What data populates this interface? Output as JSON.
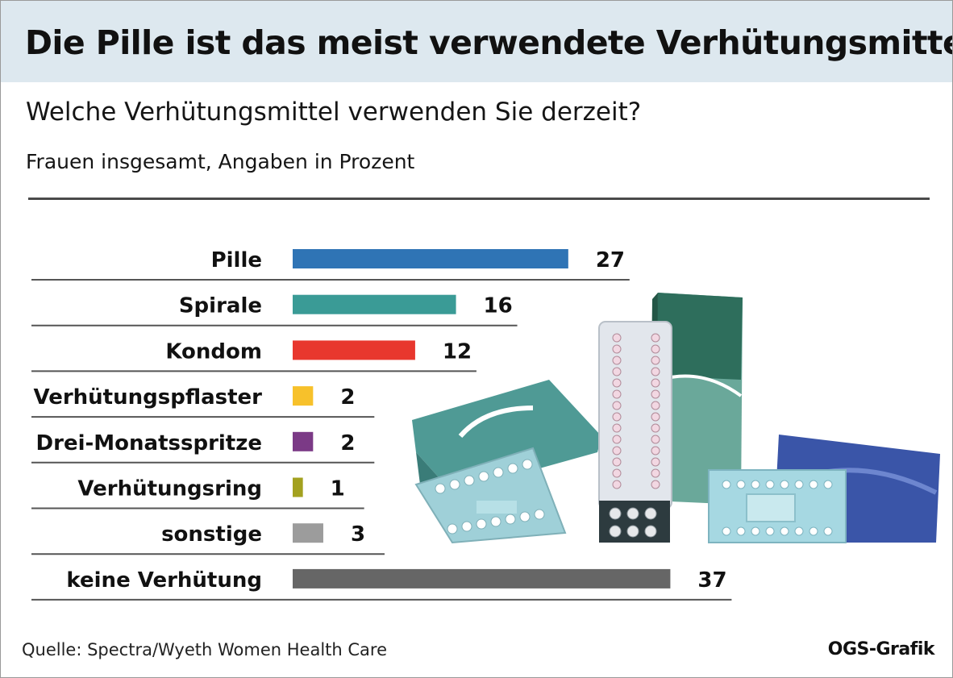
{
  "title": "Die Pille ist das meist verwendete Verhütungsmittel",
  "subtitle": "Welche Verhütungsmittel verwenden Sie derzeit?",
  "unit_note": "Frauen insgesamt,  Angaben in Prozent",
  "source": "Quelle: Spectra/Wyeth Women Health Care",
  "brand": "OGS-Grafik",
  "chart_data": {
    "type": "bar",
    "orientation": "horizontal",
    "categories": [
      "Pille",
      "Spirale",
      "Kondom",
      "Verhütungspflaster",
      "Drei-Monatsspritze",
      "Verhütungsring",
      "sonstige",
      "keine Verhütung"
    ],
    "values": [
      27,
      16,
      12,
      2,
      2,
      1,
      3,
      37
    ],
    "colors": [
      "#2f74b5",
      "#3a9b96",
      "#e8372e",
      "#f7c12b",
      "#7b3a86",
      "#a3a11f",
      "#9c9c9c",
      "#666666"
    ],
    "title": "Die Pille ist das meist verwendete Verhütungsmittel",
    "subtitle": "Welche Verhütungsmittel verwenden Sie derzeit?",
    "xlabel": "",
    "ylabel": "",
    "xlim": [
      0,
      37
    ],
    "grid": false,
    "legend": "none"
  }
}
